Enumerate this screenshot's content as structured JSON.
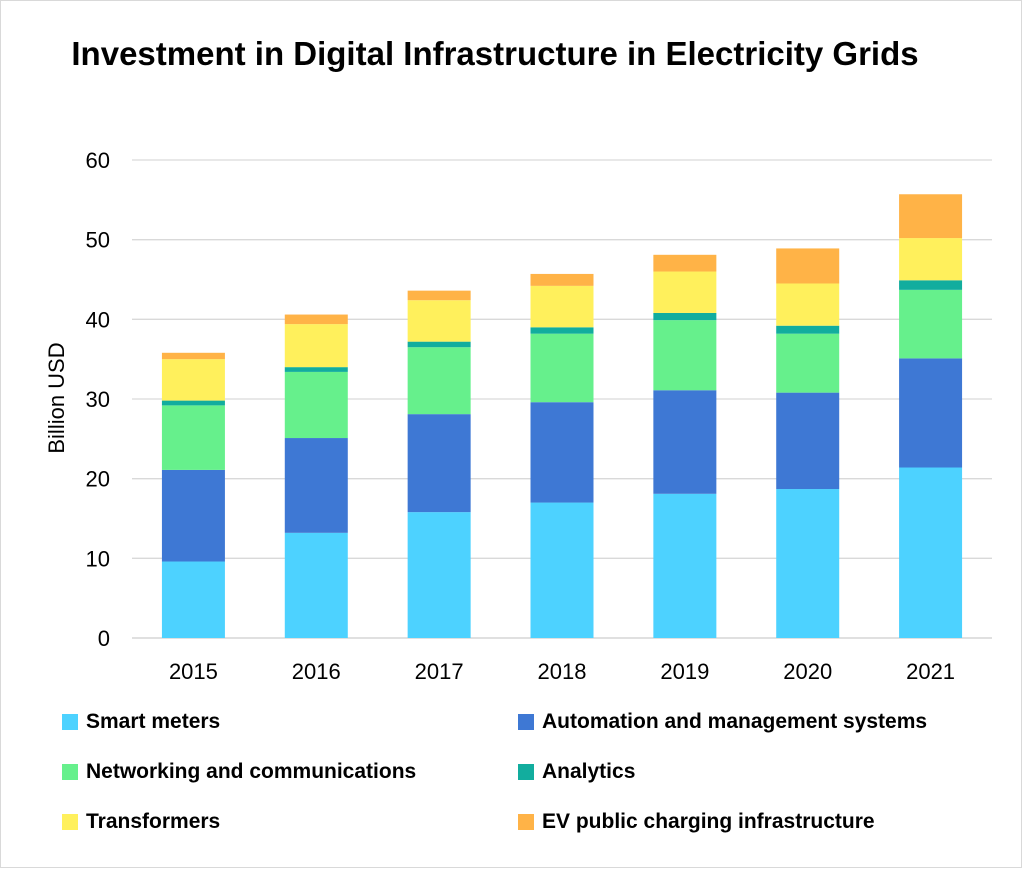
{
  "chart_data": {
    "type": "bar",
    "stacked": true,
    "title": "Investment in Digital Infrastructure in Electricity Grids",
    "ylabel": "Billion USD",
    "xlabel": "",
    "ylim": [
      0,
      60
    ],
    "yticks": [
      0,
      10,
      20,
      30,
      40,
      50,
      60
    ],
    "grid": true,
    "legend_position": "bottom",
    "categories": [
      "2015",
      "2016",
      "2017",
      "2018",
      "2019",
      "2020",
      "2021"
    ],
    "series": [
      {
        "name": "Smart meters",
        "color": "#4dd2ff",
        "values": [
          9.6,
          13.2,
          15.8,
          17.0,
          18.1,
          18.7,
          21.4
        ]
      },
      {
        "name": "Automation and management systems",
        "color": "#3e78d4",
        "values": [
          11.5,
          11.9,
          12.3,
          12.6,
          13.0,
          12.1,
          13.7
        ]
      },
      {
        "name": "Networking and communications",
        "color": "#66f08c",
        "values": [
          8.1,
          8.3,
          8.4,
          8.6,
          8.8,
          7.4,
          8.6
        ]
      },
      {
        "name": "Analytics",
        "color": "#12ad9e",
        "values": [
          0.6,
          0.6,
          0.7,
          0.8,
          0.9,
          1.0,
          1.2
        ]
      },
      {
        "name": "Transformers",
        "color": "#fff05c",
        "values": [
          5.2,
          5.4,
          5.2,
          5.2,
          5.2,
          5.3,
          5.3
        ]
      },
      {
        "name": "EV public charging infrastructure",
        "color": "#ffb347",
        "values": [
          0.8,
          1.2,
          1.2,
          1.5,
          2.1,
          4.4,
          5.5
        ]
      }
    ]
  }
}
